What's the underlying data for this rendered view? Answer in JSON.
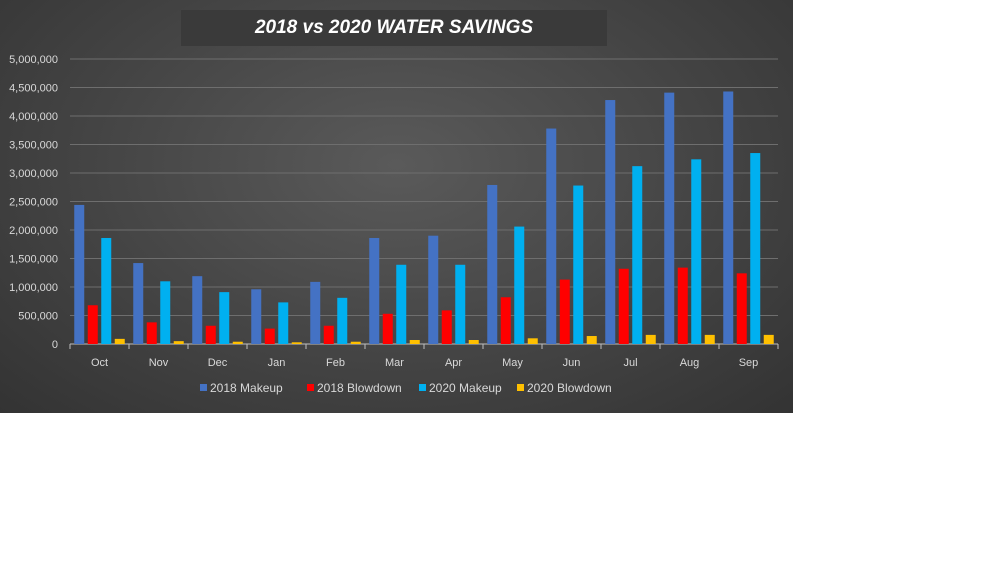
{
  "chart_data": {
    "type": "bar",
    "title": "2018 vs 2020 WATER SAVINGS",
    "categories": [
      "Oct",
      "Nov",
      "Dec",
      "Jan",
      "Feb",
      "Mar",
      "Apr",
      "May",
      "Jun",
      "Jul",
      "Aug",
      "Sep"
    ],
    "ylim": [
      0,
      5000000
    ],
    "yticks": [
      "0",
      "500,000",
      "1,000,000",
      "1,500,000",
      "2,000,000",
      "2,500,000",
      "3,000,000",
      "3,500,000",
      "4,000,000",
      "4,500,000",
      "5,000,000"
    ],
    "ytick_values": [
      0,
      500000,
      1000000,
      1500000,
      2000000,
      2500000,
      3000000,
      3500000,
      4000000,
      4500000,
      5000000
    ],
    "grid": true,
    "legend_position": "bottom",
    "series": [
      {
        "name": "2018 Makeup",
        "color": "#4472c4",
        "values": [
          2440000,
          1420000,
          1190000,
          960000,
          1090000,
          1860000,
          1900000,
          2790000,
          3780000,
          4280000,
          4410000,
          4430000
        ]
      },
      {
        "name": "2018 Blowdown",
        "color": "#ff0000",
        "values": [
          680000,
          380000,
          320000,
          270000,
          320000,
          530000,
          590000,
          820000,
          1130000,
          1320000,
          1340000,
          1240000
        ]
      },
      {
        "name": "2020 Makeup",
        "color": "#00b0f0",
        "values": [
          1860000,
          1100000,
          910000,
          730000,
          810000,
          1390000,
          1390000,
          2060000,
          2780000,
          3120000,
          3240000,
          3350000
        ]
      },
      {
        "name": "2020 Blowdown",
        "color": "#ffc000",
        "values": [
          90000,
          50000,
          40000,
          30000,
          40000,
          70000,
          70000,
          100000,
          140000,
          160000,
          160000,
          160000
        ]
      }
    ]
  }
}
